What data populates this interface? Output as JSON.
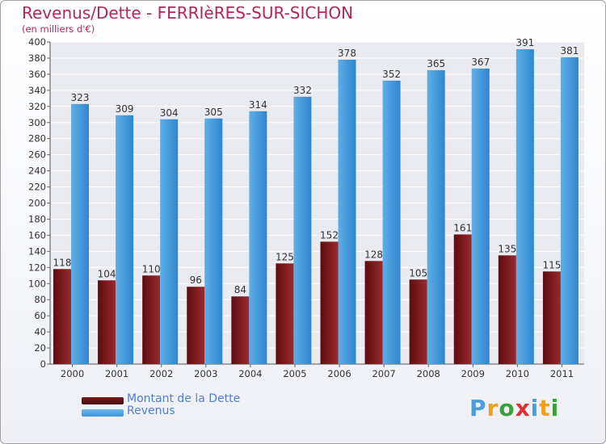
{
  "chart_data": {
    "type": "bar",
    "title": "Revenus/Dette - FERRIèRES-SUR-SICHON",
    "subtitle": "(en milliers d'€)",
    "categories": [
      "2000",
      "2001",
      "2002",
      "2003",
      "2004",
      "2005",
      "2006",
      "2007",
      "2008",
      "2009",
      "2010",
      "2011"
    ],
    "series": [
      {
        "name": "Montant de la Dette",
        "color": "#7a1a1d",
        "values": [
          118,
          104,
          110,
          96,
          84,
          125,
          152,
          128,
          105,
          161,
          135,
          115
        ]
      },
      {
        "name": "Revenus",
        "color": "#3d95db",
        "values": [
          323,
          309,
          304,
          305,
          314,
          332,
          378,
          352,
          365,
          367,
          391,
          381
        ]
      }
    ],
    "ylim": [
      0,
      400
    ],
    "yticks": [
      0,
      20,
      40,
      60,
      80,
      100,
      120,
      140,
      160,
      180,
      200,
      220,
      240,
      260,
      280,
      300,
      320,
      340,
      360,
      380,
      400
    ],
    "grid": true,
    "legend_position": "bottom-left"
  },
  "logo": {
    "letters": [
      "P",
      "r",
      "o",
      "x",
      "i",
      "t",
      "i"
    ],
    "colors": [
      "#4a9edb",
      "#f0a020",
      "#3aa23a",
      "#e03030",
      "#4a9edb",
      "#f0a020",
      "#3aa23a"
    ]
  }
}
